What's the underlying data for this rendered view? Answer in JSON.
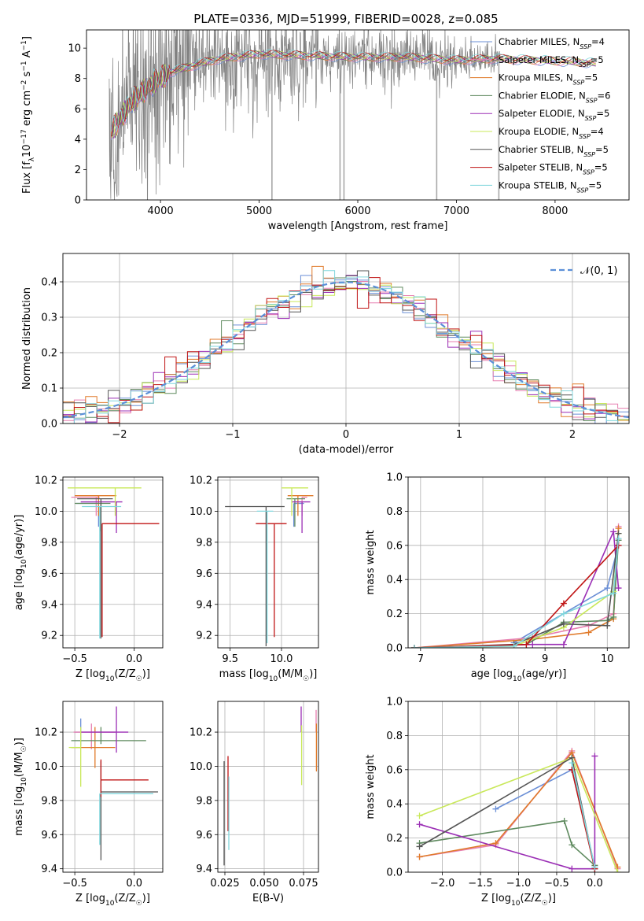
{
  "figure_title": "PLATE=0336, MJD=51999, FIBERID=0028, z=0.085",
  "colors": {
    "chabrier_miles": "#6b8fd6",
    "salpeter_miles": "#e77fb0",
    "kroupa_miles": "#e07a2a",
    "chabrier_elodie": "#5f8a5f",
    "salpeter_elodie": "#9b2fb5",
    "kroupa_elodie": "#c9e85a",
    "chabrier_stelib": "#555555",
    "salpeter_stelib": "#c01515",
    "kroupa_stelib": "#7fd6dc",
    "data": "#808080"
  },
  "chart_data": [
    {
      "id": "spectrum",
      "type": "line",
      "xlabel": "wavelength [Angstrom, rest frame]",
      "ylabel": "Flux [f_λ10^-17 erg cm^-2 s^-1 A^-1]",
      "xlim": [
        3250,
        8750
      ],
      "ylim": [
        0,
        11.2
      ],
      "xticks": [
        4000,
        5000,
        6000,
        7000,
        8000
      ],
      "yticks": [
        0,
        2,
        4,
        6,
        8,
        10
      ],
      "grid": false,
      "legend_loc": "upper right",
      "continuum": {
        "x": [
          3500,
          3700,
          3900,
          4100,
          4300,
          4600,
          5000,
          5500,
          6000,
          6500,
          7000,
          7400,
          7800,
          8200,
          8400
        ],
        "y": [
          4.5,
          6.4,
          7.6,
          8.4,
          8.8,
          9.3,
          9.6,
          9.5,
          9.4,
          9.4,
          9.2,
          9.3,
          9.2,
          9.1,
          9.0
        ]
      },
      "series": [
        {
          "name": "Chabrier MILES, N_SSP=4",
          "key": "chabrier_miles"
        },
        {
          "name": "Salpeter MILES, N_SSP=5",
          "key": "salpeter_miles"
        },
        {
          "name": "Kroupa MILES, N_SSP=5",
          "key": "kroupa_miles"
        },
        {
          "name": "Chabrier ELODIE, N_SSP=6",
          "key": "chabrier_elodie"
        },
        {
          "name": "Salpeter ELODIE, N_SSP=5",
          "key": "salpeter_elodie"
        },
        {
          "name": "Kroupa ELODIE, N_SSP=4",
          "key": "kroupa_elodie"
        },
        {
          "name": "Chabrier STELIB, N_SSP=5",
          "key": "chabrier_stelib"
        },
        {
          "name": "Salpeter STELIB, N_SSP=5",
          "key": "salpeter_stelib"
        },
        {
          "name": "Kroupa STELIB, N_SSP=5",
          "key": "kroupa_stelib"
        }
      ]
    },
    {
      "id": "residuals",
      "type": "histogram",
      "xlabel": "(data-model)/error",
      "ylabel": "Normed distribution",
      "xlim": [
        -2.5,
        2.5
      ],
      "ylim": [
        0,
        0.48
      ],
      "xticks": [
        -2,
        -1,
        0,
        1,
        2
      ],
      "yticks": [
        0.0,
        0.1,
        0.2,
        0.3,
        0.4
      ],
      "grid": true,
      "legend": "𝒩(0, 1)",
      "legend_loc": "upper right",
      "bin_width": 0.1
    },
    {
      "id": "age_vs_Z",
      "type": "errorbar",
      "xlabel": "Z [log10(Z/Z☉)]",
      "ylabel": "age  [log10(age/yr)]",
      "xlim": [
        -0.6,
        0.24
      ],
      "ylim": [
        9.12,
        10.22
      ],
      "xticks": [
        -0.5,
        0.0
      ],
      "yticks": [
        9.2,
        9.4,
        9.6,
        9.8,
        10.0,
        10.2
      ],
      "grid": true,
      "points": [
        {
          "key": "chabrier_miles",
          "x": -0.3,
          "y": 10.05,
          "xerr": [
            0.19,
            0.0
          ],
          "yerr": [
            0.15,
            0.0
          ]
        },
        {
          "key": "salpeter_miles",
          "x": -0.32,
          "y": 10.09,
          "xerr": [
            0.21,
            0.03
          ],
          "yerr": [
            0.12,
            0.0
          ]
        },
        {
          "key": "kroupa_miles",
          "x": -0.3,
          "y": 10.1,
          "xerr": [
            0.2,
            0.15
          ],
          "yerr": [
            0.13,
            0.0
          ]
        },
        {
          "key": "chabrier_elodie",
          "x": -0.28,
          "y": 10.05,
          "xerr": [
            0.22,
            0.08
          ],
          "yerr": [
            0.18,
            0.0
          ]
        },
        {
          "key": "salpeter_elodie",
          "x": -0.15,
          "y": 10.06,
          "xerr": [
            0.3,
            0.05
          ],
          "yerr": [
            0.2,
            0.0
          ]
        },
        {
          "key": "kroupa_elodie",
          "x": -0.16,
          "y": 10.15,
          "xerr": [
            0.4,
            0.22
          ],
          "yerr": [
            0.18,
            0.0
          ]
        },
        {
          "key": "chabrier_stelib",
          "x": -0.28,
          "y": 10.08,
          "xerr": [
            0.2,
            0.1
          ],
          "yerr": [
            0.9,
            0.0
          ]
        },
        {
          "key": "salpeter_stelib",
          "x": -0.27,
          "y": 9.92,
          "xerr": [
            0.0,
            0.48
          ],
          "yerr": [
            0.73,
            0.0
          ]
        },
        {
          "key": "kroupa_stelib",
          "x": -0.29,
          "y": 10.03,
          "xerr": [
            0.15,
            0.18
          ],
          "yerr": [
            0.85,
            0.0
          ]
        }
      ]
    },
    {
      "id": "age_vs_mass",
      "type": "errorbar",
      "xlabel": "mass [log10(M/M☉)]",
      "ylabel": "",
      "xlim": [
        9.38,
        10.36
      ],
      "ylim": [
        9.12,
        10.22
      ],
      "xticks": [
        9.5,
        10.0
      ],
      "yticks": [
        9.2,
        9.4,
        9.6,
        9.8,
        10.0,
        10.2
      ],
      "grid": true,
      "points": [
        {
          "key": "chabrier_miles",
          "x": 10.12,
          "y": 10.05,
          "xerr": [
            0.0,
            0.1
          ],
          "yerr": [
            0.15,
            0.0
          ]
        },
        {
          "key": "salpeter_miles",
          "x": 10.2,
          "y": 10.09,
          "xerr": [
            0.0,
            0.05
          ],
          "yerr": [
            0.12,
            0.0
          ]
        },
        {
          "key": "kroupa_miles",
          "x": 10.16,
          "y": 10.1,
          "xerr": [
            0.1,
            0.15
          ],
          "yerr": [
            0.13,
            0.0
          ]
        },
        {
          "key": "chabrier_elodie",
          "x": 10.13,
          "y": 10.08,
          "xerr": [
            0.08,
            0.1
          ],
          "yerr": [
            0.18,
            0.0
          ]
        },
        {
          "key": "salpeter_elodie",
          "x": 10.2,
          "y": 10.06,
          "xerr": [
            0.1,
            0.08
          ],
          "yerr": [
            0.2,
            0.0
          ]
        },
        {
          "key": "kroupa_elodie",
          "x": 10.1,
          "y": 10.15,
          "xerr": [
            0.1,
            0.16
          ],
          "yerr": [
            0.18,
            0.0
          ]
        },
        {
          "key": "chabrier_stelib",
          "x": 9.85,
          "y": 10.03,
          "xerr": [
            0.4,
            0.18
          ],
          "yerr": [
            0.9,
            0.0
          ]
        },
        {
          "key": "salpeter_stelib",
          "x": 9.93,
          "y": 9.92,
          "xerr": [
            0.18,
            0.12
          ],
          "yerr": [
            0.73,
            0.0
          ]
        },
        {
          "key": "kroupa_stelib",
          "x": 9.86,
          "y": 10.0,
          "xerr": [
            0.1,
            0.06
          ],
          "yerr": [
            0.85,
            0.0
          ]
        }
      ]
    },
    {
      "id": "weight_vs_age",
      "type": "line",
      "xlabel": "age  [log10(age/yr)]",
      "ylabel": "mass weight",
      "xlim": [
        6.8,
        10.35
      ],
      "ylim": [
        0.0,
        1.0
      ],
      "xticks": [
        7,
        8,
        9,
        10
      ],
      "yticks": [
        0.0,
        0.2,
        0.4,
        0.6,
        0.8,
        1.0
      ],
      "grid": true,
      "series": [
        {
          "key": "chabrier_miles",
          "x": [
            8.5,
            10.0,
            10.18
          ],
          "y": [
            0.03,
            0.35,
            0.6
          ]
        },
        {
          "key": "salpeter_miles",
          "x": [
            6.9,
            8.8,
            9.7,
            10.1,
            10.18
          ],
          "y": [
            0.0,
            0.06,
            0.13,
            0.2,
            0.71
          ]
        },
        {
          "key": "kroupa_miles",
          "x": [
            6.9,
            8.8,
            9.7,
            10.1,
            10.18
          ],
          "y": [
            0.0,
            0.05,
            0.09,
            0.17,
            0.7
          ]
        },
        {
          "key": "chabrier_elodie",
          "x": [
            6.9,
            8.7,
            9.3,
            10.0,
            10.1,
            10.18
          ],
          "y": [
            0.0,
            0.02,
            0.15,
            0.16,
            0.18,
            0.63
          ]
        },
        {
          "key": "salpeter_elodie",
          "x": [
            6.9,
            8.8,
            9.3,
            10.1,
            10.18
          ],
          "y": [
            0.0,
            0.02,
            0.02,
            0.68,
            0.35
          ]
        },
        {
          "key": "kroupa_elodie",
          "x": [
            6.9,
            8.5,
            9.3,
            10.1,
            10.18
          ],
          "y": [
            0.0,
            0.01,
            0.12,
            0.33,
            0.67
          ]
        },
        {
          "key": "chabrier_stelib",
          "x": [
            6.9,
            8.5,
            9.3,
            10.0,
            10.18
          ],
          "y": [
            0.0,
            0.02,
            0.14,
            0.13,
            0.67
          ]
        },
        {
          "key": "salpeter_stelib",
          "x": [
            6.9,
            8.7,
            9.3,
            10.18
          ],
          "y": [
            0.0,
            0.02,
            0.26,
            0.6
          ]
        },
        {
          "key": "kroupa_stelib",
          "x": [
            6.9,
            8.5,
            9.3,
            10.1,
            10.18
          ],
          "y": [
            0.0,
            0.01,
            0.2,
            0.32,
            0.64
          ]
        }
      ]
    },
    {
      "id": "mass_vs_Z",
      "type": "errorbar",
      "xlabel": "Z [log10(Z/Z☉)]",
      "ylabel": "mass [log10(M/M☉)]",
      "xlim": [
        -0.6,
        0.24
      ],
      "ylim": [
        9.38,
        10.38
      ],
      "xticks": [
        -0.5,
        0.0
      ],
      "yticks": [
        9.4,
        9.6,
        9.8,
        10.0,
        10.2
      ],
      "grid": true,
      "points": [
        {
          "key": "chabrier_miles",
          "x": -0.45,
          "y": 10.2,
          "xerr": [
            0.05,
            0.0
          ],
          "yerr": [
            0.08,
            0.08
          ]
        },
        {
          "key": "salpeter_miles",
          "x": -0.36,
          "y": 10.2,
          "xerr": [
            0.15,
            0.2
          ],
          "yerr": [
            0.1,
            0.05
          ]
        },
        {
          "key": "kroupa_miles",
          "x": -0.33,
          "y": 10.11,
          "xerr": [
            0.2,
            0.17
          ],
          "yerr": [
            0.12,
            0.12
          ]
        },
        {
          "key": "chabrier_elodie",
          "x": -0.28,
          "y": 10.15,
          "xerr": [
            0.25,
            0.38
          ],
          "yerr": [
            0.02,
            0.08
          ]
        },
        {
          "key": "salpeter_elodie",
          "x": -0.15,
          "y": 10.2,
          "xerr": [
            0.3,
            0.1
          ],
          "yerr": [
            0.12,
            0.15
          ]
        },
        {
          "key": "kroupa_elodie",
          "x": -0.45,
          "y": 10.11,
          "xerr": [
            0.1,
            0.0
          ],
          "yerr": [
            0.23,
            0.12
          ]
        },
        {
          "key": "chabrier_stelib",
          "x": -0.28,
          "y": 9.85,
          "xerr": [
            0.0,
            0.48
          ],
          "yerr": [
            0.4,
            0.18
          ]
        },
        {
          "key": "salpeter_stelib",
          "x": -0.28,
          "y": 9.92,
          "xerr": [
            0.0,
            0.4
          ],
          "yerr": [
            0.1,
            0.12
          ]
        },
        {
          "key": "kroupa_stelib",
          "x": -0.29,
          "y": 9.84,
          "xerr": [
            0.0,
            0.45
          ],
          "yerr": [
            0.3,
            0.0
          ]
        }
      ]
    },
    {
      "id": "mass_vs_ebv",
      "type": "errorbar",
      "xlabel": "E(B-V)",
      "ylabel": "",
      "xlim": [
        0.0205,
        0.0845
      ],
      "ylim": [
        9.38,
        10.38
      ],
      "xticks": [
        0.025,
        0.05,
        0.075
      ],
      "yticks": [
        9.4,
        9.6,
        9.8,
        10.0,
        10.2
      ],
      "grid": true,
      "points": [
        {
          "key": "salpeter_elodie",
          "x": 0.0735,
          "y": 10.25,
          "xerr": [
            0,
            0
          ],
          "yerr": [
            0.05,
            0.1
          ]
        },
        {
          "key": "kroupa_elodie",
          "x": 0.0738,
          "y": 10.05,
          "xerr": [
            0,
            0
          ],
          "yerr": [
            0.16,
            0.19
          ]
        },
        {
          "key": "salpeter_miles",
          "x": 0.083,
          "y": 10.25,
          "xerr": [
            0,
            0
          ],
          "yerr": [
            0.05,
            0.08
          ]
        },
        {
          "key": "kroupa_miles",
          "x": 0.0832,
          "y": 10.1,
          "xerr": [
            0,
            0
          ],
          "yerr": [
            0.13,
            0.15
          ]
        },
        {
          "key": "chabrier_stelib",
          "x": 0.0245,
          "y": 9.85,
          "xerr": [
            0,
            0
          ],
          "yerr": [
            0.43,
            0.18
          ]
        },
        {
          "key": "salpeter_stelib",
          "x": 0.027,
          "y": 9.92,
          "xerr": [
            0,
            0
          ],
          "yerr": [
            0.3,
            0.14
          ]
        },
        {
          "key": "kroupa_stelib",
          "x": 0.0275,
          "y": 9.8,
          "xerr": [
            0,
            0
          ],
          "yerr": [
            0.29,
            0.14
          ]
        }
      ]
    },
    {
      "id": "weight_vs_Z",
      "type": "line",
      "xlabel": "Z [log10(Z/Z☉)]",
      "ylabel": "mass weight",
      "xlim": [
        -2.45,
        0.45
      ],
      "ylim": [
        0.0,
        1.0
      ],
      "xticks": [
        -2.0,
        -1.5,
        -1.0,
        -0.5,
        0.0
      ],
      "yticks": [
        0.0,
        0.2,
        0.4,
        0.6,
        0.8,
        1.0
      ],
      "grid": true,
      "series": [
        {
          "key": "chabrier_miles",
          "x": [
            -1.3,
            -0.3,
            0.0
          ],
          "y": [
            0.37,
            0.6,
            0.03
          ]
        },
        {
          "key": "salpeter_miles",
          "x": [
            -2.3,
            -1.3,
            -0.3,
            0.3
          ],
          "y": [
            0.09,
            0.16,
            0.71,
            0.02
          ]
        },
        {
          "key": "kroupa_miles",
          "x": [
            -2.3,
            -1.3,
            -0.3,
            0.3
          ],
          "y": [
            0.09,
            0.17,
            0.7,
            0.03
          ]
        },
        {
          "key": "chabrier_elodie",
          "x": [
            -2.3,
            -0.4,
            -0.3,
            0.0
          ],
          "y": [
            0.17,
            0.3,
            0.16,
            0.04
          ]
        },
        {
          "key": "salpeter_elodie",
          "x": [
            -2.3,
            -0.3,
            0.0,
            0.0
          ],
          "y": [
            0.28,
            0.02,
            0.02,
            0.68
          ]
        },
        {
          "key": "kroupa_elodie",
          "x": [
            -2.3,
            -0.3,
            0.3
          ],
          "y": [
            0.33,
            0.67,
            0.0
          ]
        },
        {
          "key": "chabrier_stelib",
          "x": [
            -2.3,
            -0.3,
            0.0
          ],
          "y": [
            0.15,
            0.67,
            0.02
          ]
        },
        {
          "key": "salpeter_stelib",
          "x": [
            -0.3,
            0.0
          ],
          "y": [
            0.6,
            0.02
          ]
        },
        {
          "key": "kroupa_stelib",
          "x": [
            -0.3,
            0.0
          ],
          "y": [
            0.64,
            0.03
          ]
        }
      ]
    }
  ]
}
